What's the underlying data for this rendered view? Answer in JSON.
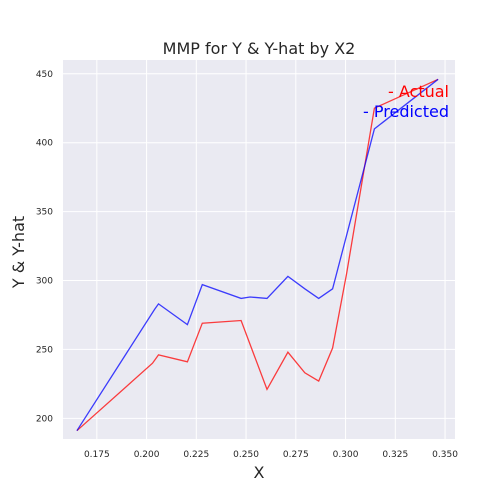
{
  "chart_data": {
    "type": "line",
    "title": "MMP for Y & Y-hat by X2",
    "xlabel": "X",
    "ylabel": "Y & Y-hat",
    "xlim": [
      0.158,
      0.355
    ],
    "ylim": [
      185,
      460
    ],
    "xticks": [
      0.175,
      0.2,
      0.225,
      0.25,
      0.275,
      0.3,
      0.325,
      0.35
    ],
    "xtick_labels": [
      "0.175",
      "0.200",
      "0.225",
      "0.250",
      "0.275",
      "0.300",
      "0.325",
      "0.350"
    ],
    "yticks": [
      200,
      250,
      300,
      350,
      400,
      450
    ],
    "ytick_labels": [
      "200",
      "250",
      "300",
      "350",
      "400",
      "450"
    ],
    "grid": true,
    "legend_position": "top-right",
    "series": [
      {
        "name": "- Actual",
        "color": "#ff0000",
        "x": [
          0.165,
          0.203,
          0.206,
          0.2205,
          0.228,
          0.2475,
          0.2605,
          0.271,
          0.2795,
          0.2865,
          0.2935,
          0.3005,
          0.3145,
          0.3465
        ],
        "y": [
          191,
          240,
          246,
          241,
          269,
          271,
          221,
          248,
          233,
          227,
          251,
          305,
          425,
          446
        ]
      },
      {
        "name": "- Predicted",
        "color": "#0000ff",
        "x": [
          0.165,
          0.204,
          0.206,
          0.2205,
          0.228,
          0.2475,
          0.252,
          0.2605,
          0.271,
          0.2795,
          0.2865,
          0.2935,
          0.3145,
          0.3465
        ],
        "y": [
          191,
          279,
          283,
          268,
          297,
          287,
          288,
          287,
          303,
          294,
          287,
          294,
          410,
          446
        ]
      }
    ]
  }
}
